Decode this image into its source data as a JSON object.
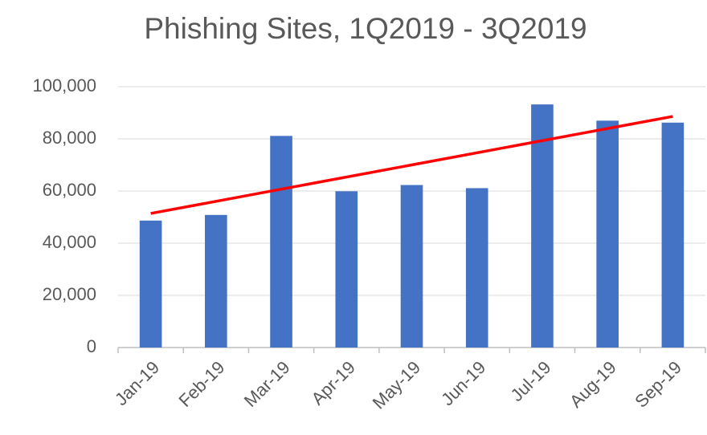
{
  "chart_data": {
    "type": "bar",
    "title": "Phishing Sites, 1Q2019 - 3Q2019",
    "categories": [
      "Jan-19",
      "Feb-19",
      "Mar-19",
      "Apr-19",
      "May-19",
      "Jun-19",
      "Jul-19",
      "Aug-19",
      "Sep-19"
    ],
    "values": [
      48663,
      50825,
      81122,
      59900,
      62300,
      61100,
      93194,
      86971,
      86222
    ],
    "color": "#4472c4",
    "trendline": {
      "color": "#ff0000",
      "values": [
        51400,
        88600
      ]
    },
    "ylim": [
      0,
      100000
    ],
    "yticks": [
      0,
      {
        "value": 20000,
        "label": "20,000"
      },
      {
        "value": 40000,
        "label": "40,000"
      },
      {
        "value": 60000,
        "label": "60,000"
      },
      {
        "value": 80000,
        "label": "80,000"
      },
      {
        "value": 100000,
        "label": "100,000"
      }
    ],
    "grid": true
  }
}
